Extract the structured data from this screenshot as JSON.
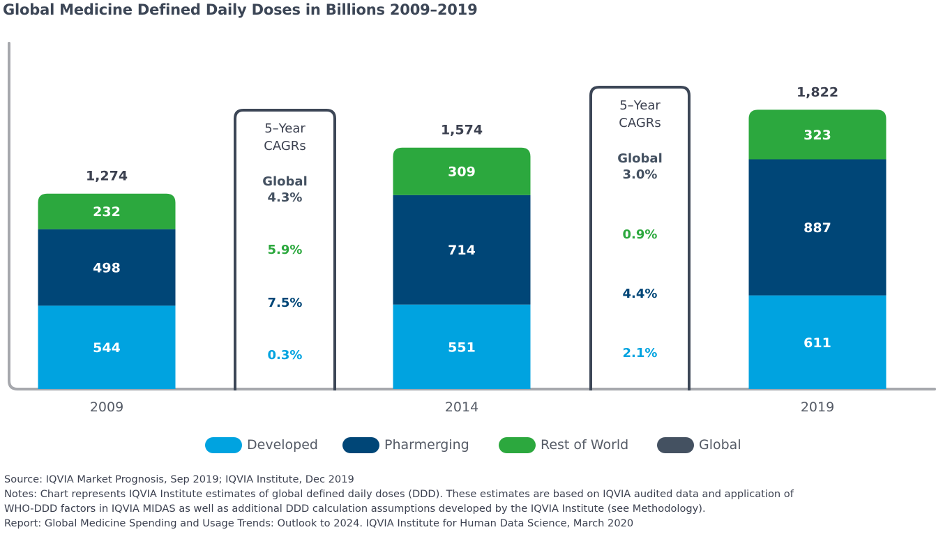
{
  "title": "Global Medicine Defined Daily Doses in Billions 2009–2019",
  "colors": {
    "developed": "#00a3e0",
    "pharmerging": "#004677",
    "rest_of_world": "#2ca83e",
    "global": "#445161",
    "axis": "#a6a8ad",
    "box_border": "#3c4656"
  },
  "chart_data": {
    "type": "bar",
    "stacked": true,
    "categories": [
      "2009",
      "2014",
      "2019"
    ],
    "series": [
      {
        "name": "Developed",
        "values": [
          544,
          551,
          611
        ]
      },
      {
        "name": "Pharmerging",
        "values": [
          498,
          714,
          887
        ]
      },
      {
        "name": "Rest of World",
        "values": [
          232,
          309,
          323
        ]
      }
    ],
    "totals": [
      "1,274",
      "1,574",
      "1,822"
    ],
    "ylim": [
      0,
      2200
    ],
    "cagr_boxes": [
      {
        "heading_line1": "5–Year",
        "heading_line2": "CAGRs",
        "global_label": "Global",
        "global_value": "4.3%",
        "rest_of_world": "5.9%",
        "pharmerging": "7.5%",
        "developed": "0.3%"
      },
      {
        "heading_line1": "5–Year",
        "heading_line2": "CAGRs",
        "global_label": "Global",
        "global_value": "3.0%",
        "rest_of_world": "0.9%",
        "pharmerging": "4.4%",
        "developed": "2.1%"
      }
    ]
  },
  "legend": [
    {
      "label": "Developed",
      "color": "#00a3e0"
    },
    {
      "label": "Pharmerging",
      "color": "#004677"
    },
    {
      "label": "Rest of World",
      "color": "#2ca83e"
    },
    {
      "label": "Global",
      "color": "#445161"
    }
  ],
  "notes": {
    "source": "Source: IQVIA Market Prognosis, Sep 2019; IQVIA Institute, Dec 2019",
    "notes_line1": "Notes: Chart represents IQVIA Institute estimates of global defined daily doses (DDD). These estimates are based on IQVIA audited data and application of",
    "notes_line2": "WHO-DDD factors in IQVIA MIDAS as well as additional DDD calculation assumptions developed by the IQVIA Institute (see Methodology).",
    "report": "Report: Global Medicine Spending and Usage Trends: Outlook to 2024. IQVIA Institute for Human Data Science, March 2020"
  }
}
